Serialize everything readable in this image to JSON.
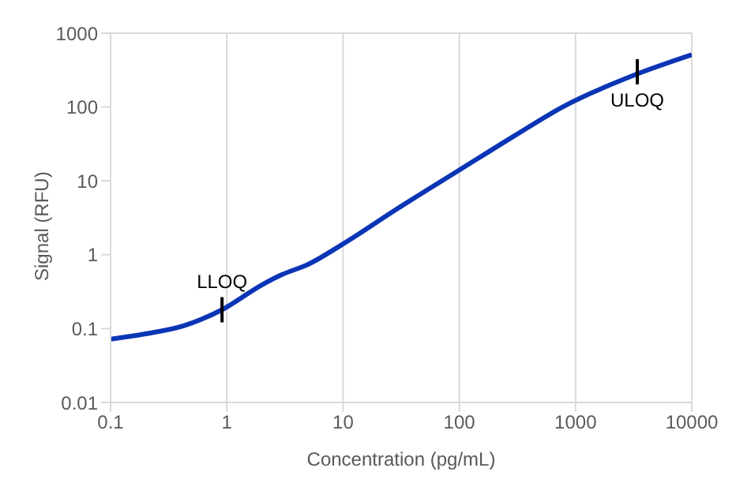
{
  "chart_data": {
    "type": "line",
    "xlabel": "Concentration (pg/mL)",
    "ylabel": "Signal (RFU)",
    "x": [
      0.1,
      0.2,
      0.43,
      0.91,
      2,
      3,
      5,
      10,
      30,
      100,
      300,
      790,
      3000,
      10000
    ],
    "series": [
      {
        "color": "#0a35b5",
        "values": [
          0.072,
          0.085,
          0.11,
          0.18,
          0.39,
          0.54,
          0.74,
          1.4,
          4.3,
          14,
          41,
          102,
          260,
          510
        ]
      }
    ],
    "log": "xy",
    "xlim": [
      0.1,
      10000
    ],
    "xticks": [
      0.1,
      1,
      10,
      100,
      1000,
      10000
    ],
    "ylim": [
      0.01,
      1000
    ],
    "yticks": [
      0.01,
      0.1,
      1,
      10,
      100,
      1000
    ],
    "grid": "x",
    "marker": "none",
    "line_style": "solid",
    "annotations": [
      {
        "text": "LLOQ",
        "x": 0.91,
        "y": 0.18
      },
      {
        "text": "ULOQ",
        "x": 3400,
        "y": 300
      }
    ]
  }
}
